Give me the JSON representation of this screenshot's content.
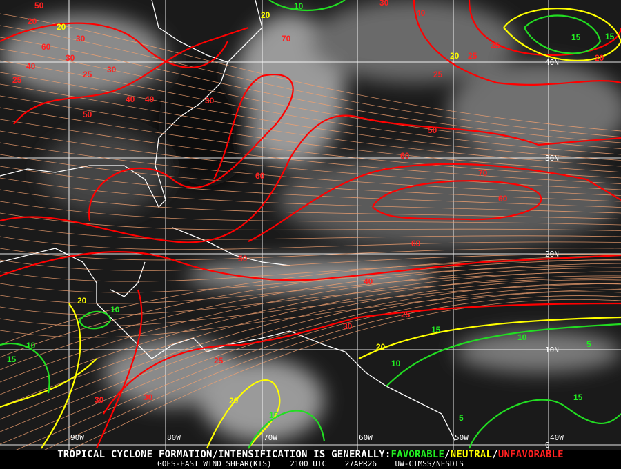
{
  "footer": {
    "line1_prefix": "TROPICAL CYCLONE FORMATION/INTENSIFICATION IS GENERALLY:",
    "favorable": "FAVORABLE",
    "sep1": "/",
    "neutral": "NEUTRAL",
    "sep2": "/",
    "unfavorable": "UNFAVORABLE",
    "satellite": "GOES-EAST WIND SHEAR(KTS)",
    "time": "2100 UTC",
    "date": "27APR26",
    "source": "UW-CIMSS/NESDIS"
  },
  "longitude_labels": [
    "90W",
    "80W",
    "70W",
    "60W",
    "50W",
    "40W"
  ],
  "latitude_labels": [
    "40N",
    "30N",
    "20N",
    "10N",
    "0"
  ],
  "contour_labels": {
    "red": [
      "50",
      "30",
      "25",
      "60",
      "40",
      "50",
      "30",
      "70",
      "40",
      "30",
      "25",
      "30",
      "20",
      "40",
      "50",
      "60",
      "70",
      "60",
      "60",
      "40",
      "25",
      "30",
      "25",
      "30",
      "30",
      "50",
      "60",
      "25",
      "30",
      "40",
      "35",
      "20",
      "25"
    ],
    "yellow": [
      "20",
      "20",
      "20",
      "20",
      "20",
      "20"
    ],
    "green": [
      "10",
      "15",
      "15",
      "10",
      "15",
      "10",
      "15",
      "5",
      "10",
      "10",
      "5",
      "15",
      "15"
    ]
  },
  "colors": {
    "unfavorable": "#ff0000",
    "neutral": "#ffff00",
    "favorable": "#00dd00",
    "streamline": "#f0a070",
    "grid": "#ffffff",
    "coast": "#ffffff"
  }
}
